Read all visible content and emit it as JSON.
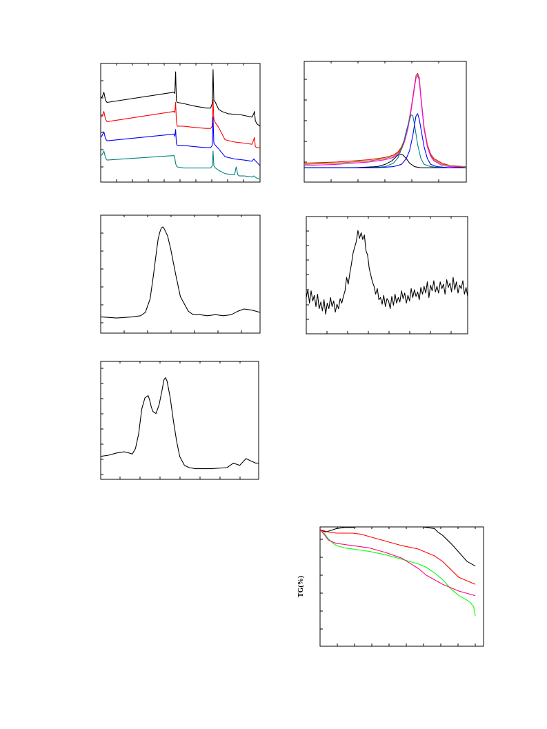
{
  "chart_data": [
    {
      "type": "line",
      "panel": "top-left",
      "title": "",
      "xlabel": "",
      "ylabel": "",
      "xlim": [
        0,
        100
      ],
      "ylim": [
        0,
        100
      ],
      "grid": false,
      "series": [
        {
          "color": "#000000",
          "x": [
            0,
            1,
            2,
            3,
            4,
            46,
            46.5,
            47,
            47.5,
            48,
            52,
            58,
            66,
            69,
            70,
            70.5,
            71,
            72,
            74,
            76,
            80,
            88,
            95,
            96,
            96.5,
            97,
            98,
            100
          ],
          "y": [
            72,
            73,
            77,
            70,
            68,
            77,
            76,
            95,
            70,
            68,
            67,
            65,
            63,
            63,
            67,
            97,
            70,
            68,
            62,
            60,
            58,
            57,
            55,
            58,
            60,
            52,
            49,
            47
          ]
        },
        {
          "color": "#ff0000",
          "x": [
            0,
            1,
            2,
            3,
            4,
            46,
            46.5,
            47,
            47.5,
            48,
            52,
            58,
            66,
            69,
            70,
            70.5,
            71,
            72,
            74,
            78,
            84,
            90,
            95,
            96,
            96.5,
            97,
            98,
            100
          ],
          "y": [
            55,
            56,
            60,
            53,
            51,
            60,
            59,
            68,
            52,
            47,
            47,
            46,
            45,
            45,
            47,
            70,
            53,
            50,
            46,
            35,
            33,
            32,
            31,
            35,
            37,
            29,
            28,
            28
          ]
        },
        {
          "color": "#0000ff",
          "x": [
            0,
            1,
            2,
            3,
            4,
            46,
            46.5,
            47,
            47.5,
            48,
            52,
            58,
            66,
            69,
            70,
            70.5,
            71,
            72,
            74,
            78,
            84,
            90,
            95,
            96,
            98,
            100
          ],
          "y": [
            37,
            39,
            42,
            36,
            34,
            40,
            38,
            44,
            32,
            30,
            30,
            29,
            28,
            28,
            30,
            55,
            32,
            30,
            27,
            20,
            18,
            17,
            16,
            18,
            15,
            12
          ]
        },
        {
          "color": "#008080",
          "x": [
            0,
            1,
            2,
            3,
            4,
            46,
            46.5,
            47,
            47.5,
            48,
            52,
            58,
            66,
            69,
            70,
            70.5,
            71,
            72,
            74,
            78,
            84,
            85,
            86,
            87,
            90,
            95,
            96,
            98,
            100
          ],
          "y": [
            21,
            22,
            25,
            19,
            17,
            21,
            19,
            14,
            12,
            11,
            10,
            10,
            10,
            10,
            12,
            25,
            12,
            10,
            8,
            5,
            4,
            11,
            4,
            3,
            3,
            2,
            3,
            1,
            0
          ]
        }
      ]
    },
    {
      "type": "line",
      "panel": "top-right",
      "title": "",
      "xlabel": "",
      "ylabel": "",
      "xlim": [
        0,
        100
      ],
      "ylim": [
        0,
        100
      ],
      "grid": false,
      "series": [
        {
          "color": "#ff0000",
          "x": [
            0,
            20,
            40,
            50,
            55,
            58,
            60,
            62,
            64,
            66,
            68,
            69,
            70,
            71,
            72,
            74,
            76,
            78,
            80,
            85,
            90,
            100
          ],
          "y": [
            14,
            15,
            17,
            19,
            21,
            24,
            28,
            35,
            46,
            62,
            81,
            90,
            92,
            88,
            72,
            45,
            30,
            22,
            18,
            14,
            12,
            10
          ]
        },
        {
          "color": "#808000",
          "x": [
            0,
            20,
            40,
            50,
            55,
            58,
            60,
            62,
            64,
            66,
            68,
            69,
            70,
            71,
            72,
            74,
            76,
            78,
            80,
            85,
            90,
            100
          ],
          "y": [
            13,
            14,
            16,
            18,
            20,
            23,
            27,
            34,
            45,
            61,
            80,
            90,
            91,
            87,
            71,
            44,
            29,
            21,
            17,
            13,
            12,
            11
          ]
        },
        {
          "color": "#ff00ff",
          "x": [
            0,
            20,
            40,
            50,
            55,
            58,
            60,
            62,
            64,
            66,
            68,
            69,
            70,
            71,
            72,
            74,
            76,
            78,
            80,
            85,
            90,
            100
          ],
          "y": [
            12,
            13,
            15,
            17,
            19,
            22,
            26,
            33,
            44,
            60,
            79,
            88,
            90,
            86,
            70,
            43,
            28,
            20,
            16,
            12,
            11,
            10
          ]
        },
        {
          "color": "#000000",
          "x": [
            0,
            30,
            45,
            50,
            54,
            57,
            59,
            61,
            63,
            65,
            68,
            72,
            80,
            100
          ],
          "y": [
            10,
            10,
            11,
            13,
            16,
            20,
            22,
            21,
            18,
            14,
            11,
            10,
            10,
            10
          ]
        },
        {
          "color": "#008080",
          "x": [
            0,
            40,
            50,
            55,
            58,
            61,
            63,
            65,
            66,
            67,
            68,
            70,
            72,
            74,
            78,
            85,
            100
          ],
          "y": [
            10,
            10,
            11,
            14,
            19,
            30,
            42,
            52,
            56,
            55,
            48,
            30,
            18,
            13,
            11,
            10,
            10
          ]
        },
        {
          "color": "#0000ff",
          "x": [
            0,
            45,
            55,
            60,
            63,
            65,
            67,
            68,
            69,
            70,
            71,
            72,
            74,
            76,
            78,
            82,
            90,
            100
          ],
          "y": [
            10,
            10,
            11,
            13,
            18,
            25,
            38,
            47,
            55,
            57,
            52,
            44,
            28,
            18,
            13,
            11,
            10,
            10
          ]
        }
      ]
    },
    {
      "type": "line",
      "panel": "middle-left",
      "title": "",
      "xlabel": "",
      "ylabel": "",
      "xlim": [
        0,
        100
      ],
      "ylim": [
        0,
        100
      ],
      "grid": false,
      "series": [
        {
          "color": "#000000",
          "x": [
            0,
            10,
            20,
            25,
            28,
            31,
            33,
            35,
            36,
            37,
            38,
            39,
            40,
            42,
            44,
            47,
            50,
            55,
            58,
            62,
            67,
            72,
            77,
            82,
            86,
            90,
            95,
            100
          ],
          "y": [
            12,
            11,
            12,
            13,
            16,
            28,
            48,
            70,
            81,
            87,
            91,
            92,
            90,
            84,
            72,
            50,
            30,
            17,
            14,
            14,
            13,
            14,
            13,
            14,
            17,
            19,
            18,
            16
          ]
        }
      ]
    },
    {
      "type": "line",
      "panel": "middle-right",
      "title": "",
      "xlabel": "",
      "ylabel": "",
      "xlim": [
        0,
        100
      ],
      "ylim": [
        0,
        100
      ],
      "grid": false,
      "series": [
        {
          "color": "#000000",
          "x": [
            0,
            1,
            2,
            3,
            4,
            5,
            6,
            7,
            8,
            9,
            10,
            11,
            12,
            13,
            14,
            15,
            16,
            17,
            18,
            19,
            20,
            21,
            22,
            23,
            24,
            25,
            26,
            27,
            28,
            29,
            30,
            31,
            32,
            33,
            34,
            35,
            36,
            37,
            38,
            39,
            40,
            41,
            42,
            43,
            44,
            45,
            46,
            47,
            48,
            49,
            50,
            51,
            52,
            53,
            54,
            55,
            56,
            57,
            58,
            59,
            60,
            61,
            62,
            63,
            64,
            65,
            66,
            67,
            68,
            69,
            70,
            71,
            72,
            73,
            74,
            75,
            76,
            77,
            78,
            79,
            80,
            81,
            82,
            83,
            84,
            85,
            86,
            87,
            88,
            89,
            90,
            91,
            92,
            93,
            94,
            95,
            96,
            97,
            98,
            99,
            100
          ],
          "y": [
            30,
            37,
            25,
            36,
            27,
            32,
            22,
            33,
            20,
            26,
            18,
            28,
            15,
            25,
            20,
            30,
            22,
            27,
            17,
            24,
            20,
            29,
            25,
            31,
            36,
            48,
            42,
            52,
            60,
            70,
            75,
            80,
            90,
            83,
            88,
            82,
            86,
            72,
            68,
            56,
            50,
            44,
            40,
            33,
            38,
            28,
            30,
            24,
            32,
            22,
            29,
            27,
            20,
            31,
            23,
            33,
            25,
            30,
            26,
            36,
            29,
            34,
            25,
            32,
            27,
            38,
            30,
            37,
            31,
            35,
            28,
            39,
            33,
            40,
            34,
            44,
            30,
            41,
            36,
            45,
            35,
            40,
            34,
            44,
            38,
            42,
            33,
            46,
            39,
            43,
            35,
            48,
            37,
            44,
            34,
            41,
            38,
            45,
            33,
            39,
            31
          ]
        }
      ]
    },
    {
      "type": "line",
      "panel": "lower-left",
      "title": "",
      "xlabel": "",
      "ylabel": "",
      "xlim": [
        0,
        100
      ],
      "ylim": [
        0,
        100
      ],
      "grid": false,
      "series": [
        {
          "color": "#000000",
          "x": [
            0,
            5,
            10,
            15,
            18,
            20,
            22,
            24,
            26,
            28,
            30,
            31,
            32,
            33,
            35,
            37,
            39,
            40,
            41,
            42,
            44,
            46,
            48,
            50,
            53,
            56,
            60,
            70,
            80,
            82,
            84,
            86,
            88,
            90,
            92,
            95,
            98,
            100
          ],
          "y": [
            18,
            19,
            21,
            22,
            21,
            20,
            25,
            38,
            60,
            70,
            72,
            68,
            62,
            58,
            56,
            64,
            78,
            86,
            88,
            85,
            70,
            50,
            32,
            18,
            10,
            8,
            7,
            7,
            8,
            10,
            12,
            11,
            10,
            13,
            16,
            14,
            12,
            12
          ]
        }
      ]
    },
    {
      "type": "line",
      "panel": "bottom-right",
      "title": "",
      "xlabel": "",
      "ylabel": "TG(%)",
      "xlim": [
        0,
        100
      ],
      "ylim": [
        0,
        100
      ],
      "grid": false,
      "series": [
        {
          "color": "#000000",
          "x": [
            0,
            3,
            6,
            10,
            15,
            20,
            25,
            30,
            40,
            50,
            60,
            65,
            70,
            72,
            75,
            80,
            85,
            90,
            95
          ],
          "y": [
            100,
            98,
            99,
            101,
            102,
            102,
            103,
            103,
            103,
            103,
            103,
            102,
            101,
            98,
            95,
            88,
            80,
            72,
            68
          ]
        },
        {
          "color": "#ff0000",
          "x": [
            0,
            5,
            10,
            15,
            20,
            25,
            30,
            40,
            50,
            60,
            65,
            70,
            75,
            80,
            85,
            90,
            95
          ],
          "y": [
            100,
            98,
            97,
            97,
            97,
            96,
            94,
            90,
            86,
            83,
            80,
            77,
            72,
            65,
            58,
            55,
            52
          ]
        },
        {
          "color": "#00ff00",
          "x": [
            0,
            3,
            5,
            8,
            10,
            15,
            20,
            30,
            40,
            50,
            60,
            65,
            70,
            75,
            80,
            85,
            90,
            92,
            94,
            95
          ],
          "y": [
            100,
            96,
            92,
            88,
            86,
            84,
            83,
            81,
            78,
            74,
            70,
            67,
            62,
            56,
            48,
            42,
            38,
            36,
            32,
            24
          ]
        },
        {
          "color": "#ff0080",
          "x": [
            0,
            3,
            5,
            8,
            10,
            15,
            20,
            30,
            40,
            50,
            60,
            65,
            70,
            75,
            80,
            85,
            90,
            95
          ],
          "y": [
            100,
            95,
            91,
            89,
            88,
            87,
            86,
            84,
            80,
            75,
            66,
            60,
            56,
            52,
            49,
            46,
            44,
            42
          ]
        }
      ]
    }
  ]
}
